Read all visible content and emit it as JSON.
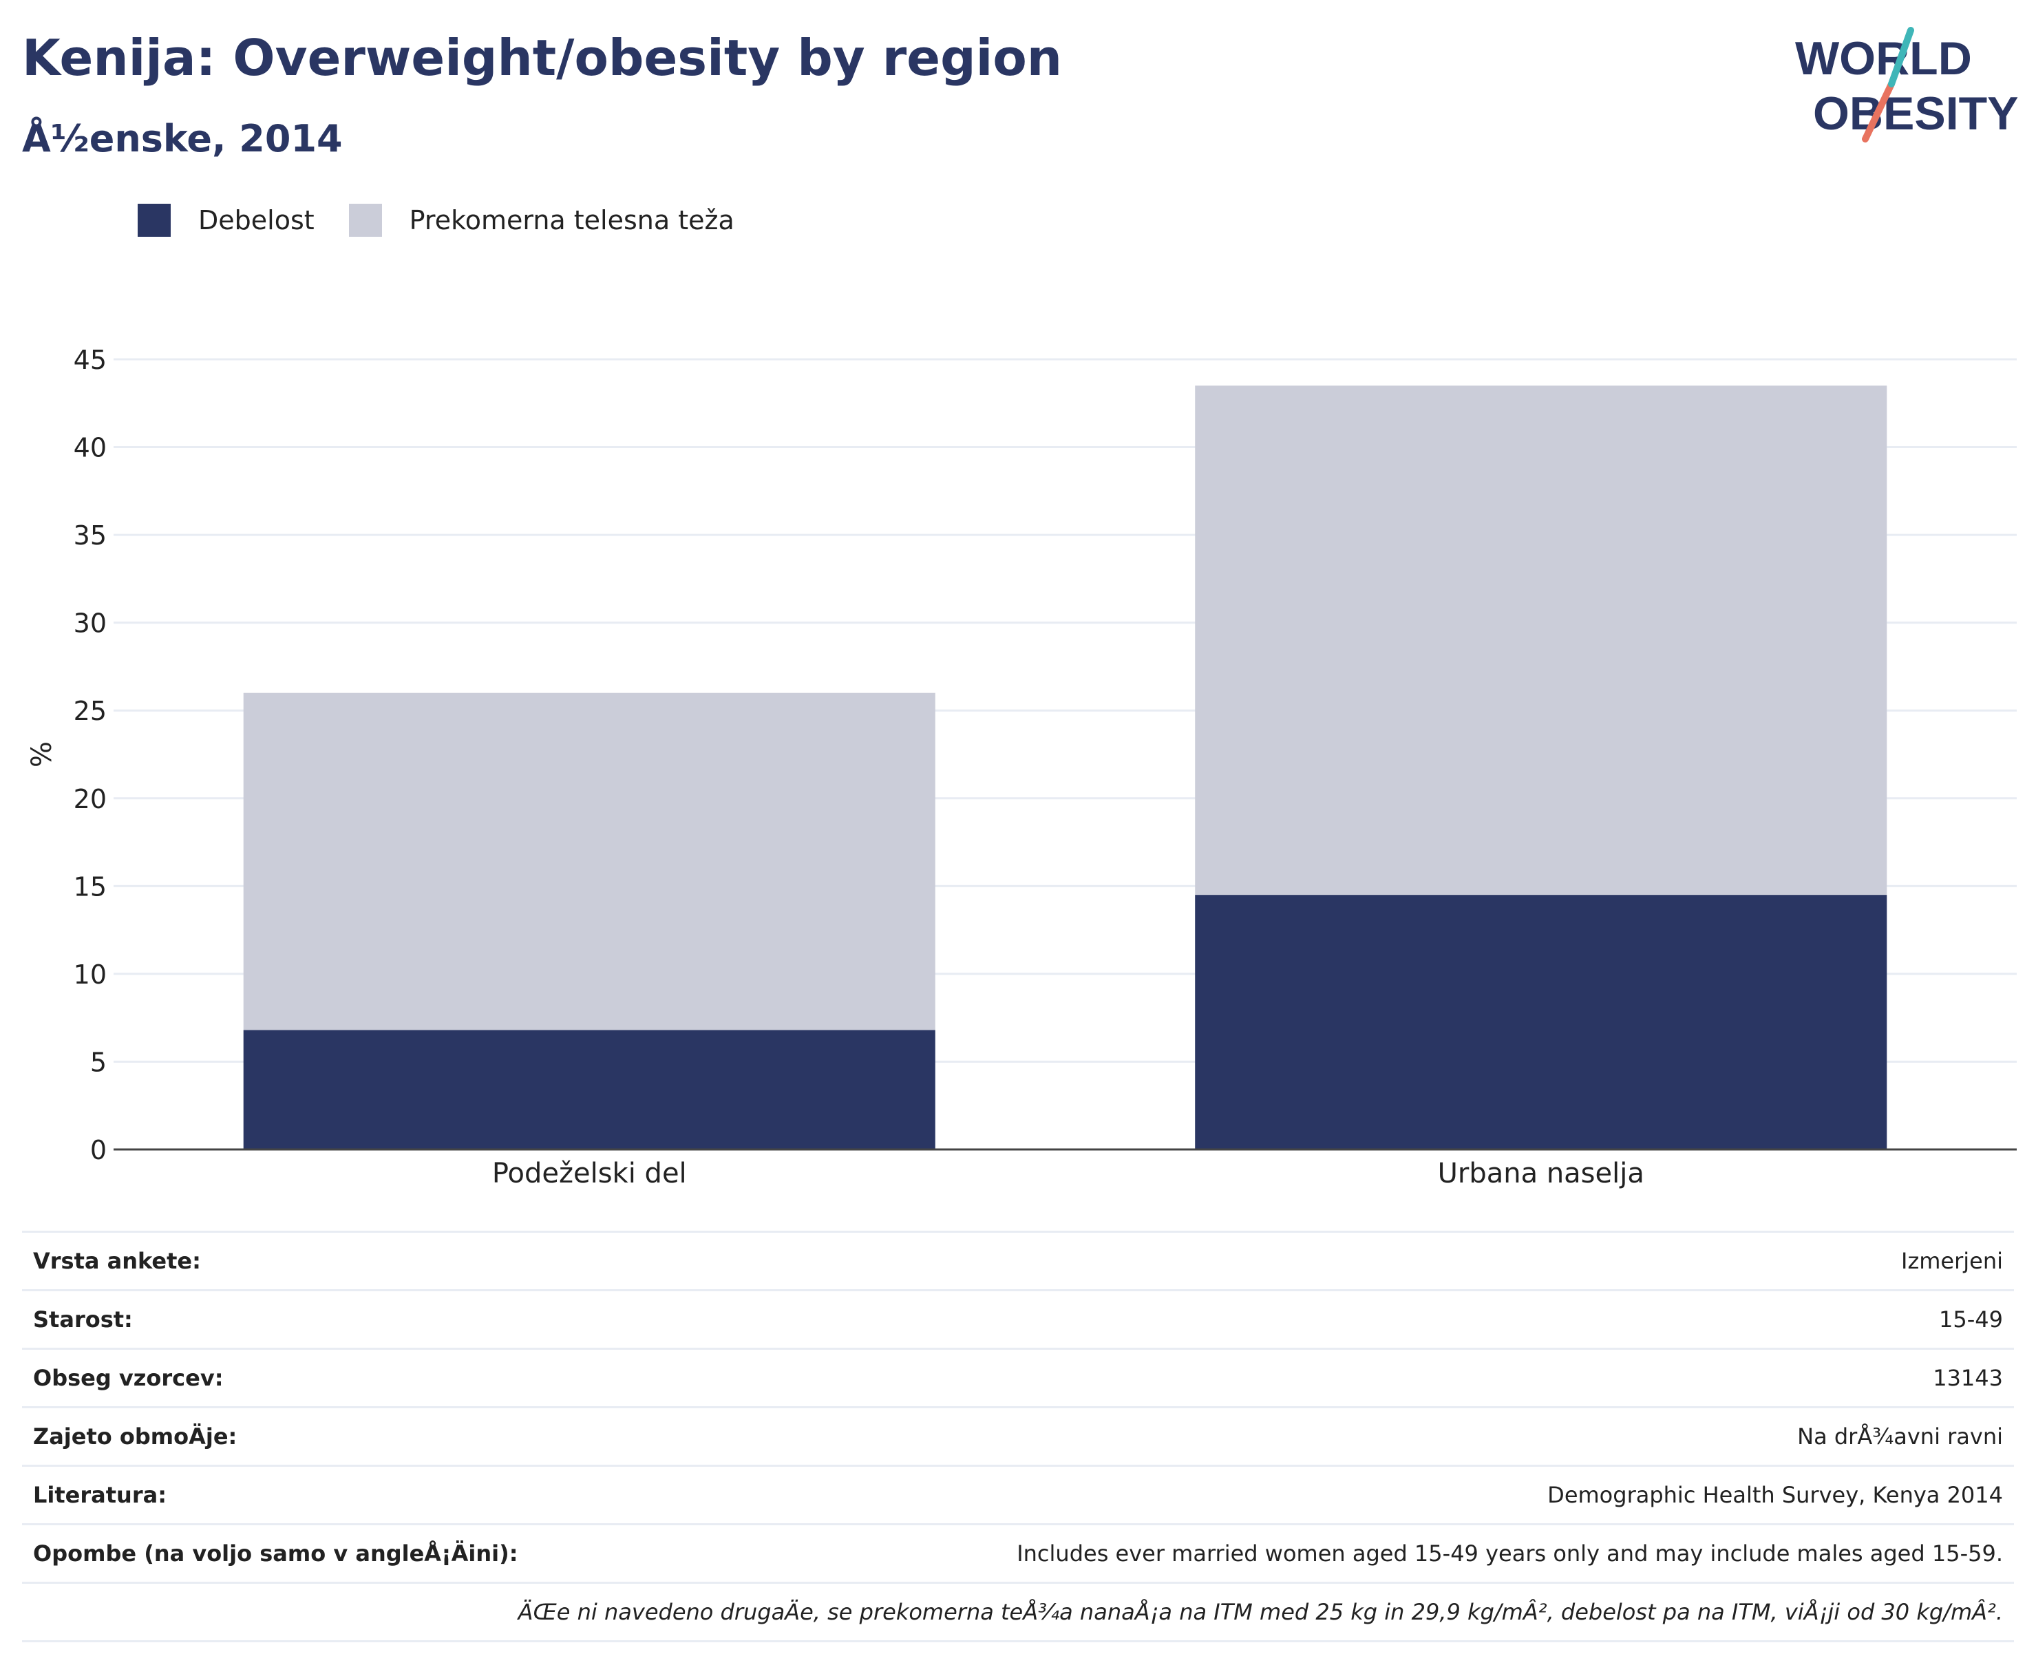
{
  "header": {
    "title": "Kenija: Overweight/obesity by region",
    "subtitle": "Å½enske, 2014"
  },
  "logo": {
    "line1": "WORLD",
    "line2": "OBESITY"
  },
  "colors": {
    "obesity": "#2a3663",
    "overweight": "#cbcdd9",
    "accent_teal": "#3fb6b8",
    "accent_coral": "#e8735f"
  },
  "chart_data": {
    "type": "bar",
    "stacked": true,
    "categories": [
      "Podeželski del",
      "Urbana naselja"
    ],
    "series": [
      {
        "name": "Debelost",
        "values": [
          6.8,
          14.5
        ],
        "color": "#2a3663"
      },
      {
        "name": "Prekomerna telesna teža",
        "values": [
          19.2,
          29.0
        ],
        "color": "#cbcdd9"
      }
    ],
    "ylabel": "%",
    "ylim": [
      0,
      45
    ],
    "yticks": [
      0,
      5,
      10,
      15,
      20,
      25,
      30,
      35,
      40,
      45
    ],
    "grid": true,
    "legend": "top-left"
  },
  "info": {
    "rows": [
      {
        "label": "Vrsta ankete:",
        "value": "Izmerjeni"
      },
      {
        "label": "Starost:",
        "value": "15-49"
      },
      {
        "label": "Obseg vzorcev:",
        "value": "13143"
      },
      {
        "label": "Zajeto obmoÄje:",
        "value": "Na drÅ¾avni ravni"
      },
      {
        "label": "Literatura:",
        "value": "Demographic Health Survey, Kenya 2014"
      },
      {
        "label": "Opombe (na voljo samo v angleÅ¡Äini):",
        "value": "Includes ever married women aged 15-49 years only and may include males aged 15-59."
      }
    ],
    "footnote": "ÄŒe ni navedeno drugaÄe, se prekomerna teÅ¾a nanaÅ¡a na ITM med 25 kg in 29,9 kg/mÂ², debelost pa na ITM, viÅ¡ji od 30 kg/mÂ²."
  }
}
